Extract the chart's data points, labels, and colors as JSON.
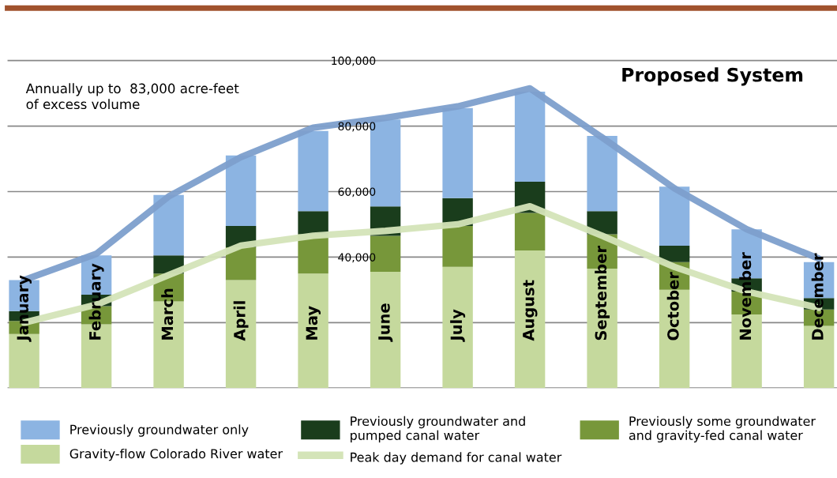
{
  "chart_data": {
    "type": "bar",
    "title": "Proposed System",
    "stacked": true,
    "categories": [
      "January",
      "February",
      "March",
      "April",
      "May",
      "June",
      "July",
      "August",
      "September",
      "October",
      "November",
      "December"
    ],
    "series": [
      {
        "name": "Gravity-flow Colorado River water",
        "color": "#c5d99d",
        "values": [
          16500,
          19500,
          26500,
          33000,
          35000,
          35500,
          37000,
          42000,
          36500,
          30000,
          22500,
          19000
        ]
      },
      {
        "name": "Previously some groundwater\nand gravity-fed canal water",
        "color": "#77973a",
        "values": [
          4000,
          5500,
          8500,
          10000,
          12000,
          11000,
          12500,
          11500,
          10500,
          8500,
          7000,
          5000
        ]
      },
      {
        "name": "Previously groundwater and\npumped canal water",
        "color": "#1a3d1c",
        "values": [
          3000,
          3500,
          5500,
          6500,
          7000,
          9000,
          8500,
          9500,
          7000,
          5000,
          4000,
          3500
        ]
      },
      {
        "name": "Previously groundwater only",
        "color": "#8cb4e2",
        "values": [
          9500,
          12000,
          18500,
          21500,
          24500,
          26500,
          27500,
          27500,
          23000,
          18000,
          15000,
          11000
        ]
      },
      {
        "type": "line",
        "color": "#7d9fcc",
        "values": [
          33000,
          41000,
          58500,
          70500,
          79500,
          82500,
          86000,
          91500,
          76500,
          61000,
          48500,
          39500
        ]
      },
      {
        "type": "line",
        "name": "Peak day demand for canal water",
        "color": "#d4e4b8",
        "values": [
          20000,
          25500,
          34500,
          43500,
          46500,
          48000,
          50000,
          55500,
          46500,
          37000,
          29500,
          24500
        ]
      }
    ],
    "ylim": [
      0,
      116000
    ],
    "yticks": [
      {
        "value": 20000,
        "label": null
      },
      {
        "value": 40000,
        "label": "40,000"
      },
      {
        "value": 60000,
        "label": "60,000"
      },
      {
        "value": 80000,
        "label": "80,000"
      },
      {
        "value": 100000,
        "label": "100,000"
      }
    ],
    "grid": "y",
    "legend": "bottom",
    "marker": "none",
    "line_style": "solid",
    "annotations": [
      "Annually up to  83,000 acre-feet\nof excess volume"
    ]
  }
}
